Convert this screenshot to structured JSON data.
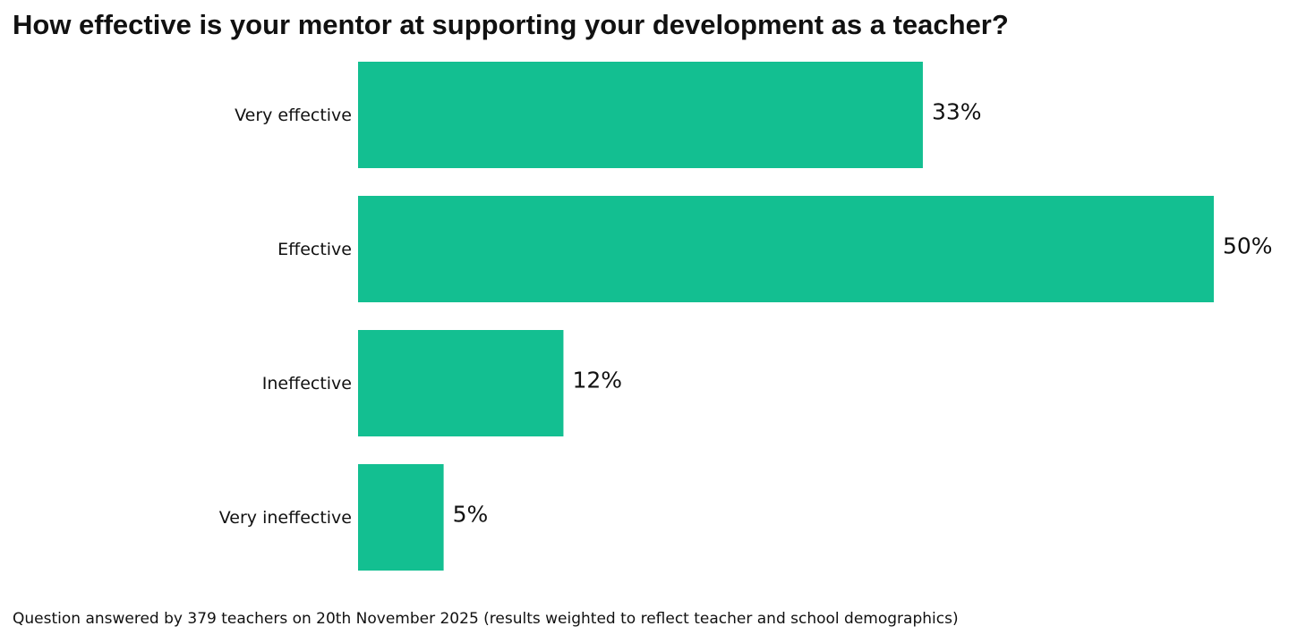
{
  "chart_data": {
    "type": "bar",
    "orientation": "horizontal",
    "title": "How effective is your mentor at supporting your development as a teacher?",
    "categories": [
      "Very effective",
      "Effective",
      "Ineffective",
      "Very ineffective"
    ],
    "values": [
      33,
      50,
      12,
      5
    ],
    "value_labels": [
      "33%",
      "50%",
      "12%",
      "5%"
    ],
    "color": "#13bf91",
    "footnote": "Question answered by 379 teachers on 20th November 2025 (results weighted to reflect teacher and school demographics)"
  }
}
